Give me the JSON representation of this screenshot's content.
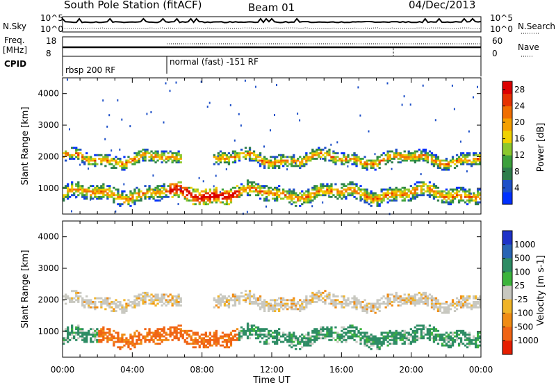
{
  "header": {
    "station": "South Pole Station (fitACF)",
    "beam": "Beam 01",
    "date": "04/Dec/2013"
  },
  "side_labels": {
    "nsky": "N.Sky",
    "freq": "Freq.",
    "freq_unit": "[MHz]",
    "cpid": "CPID",
    "nsearch": "N.Search",
    "nave": "Nave"
  },
  "noise_ticks": [
    "10^5",
    "10^0"
  ],
  "freq_left_ticks": [
    "18",
    "8"
  ],
  "nave_right_ticks": [
    "60",
    "0"
  ],
  "cpid_segments": [
    "rbsp 200 RF",
    "normal (fast) -151 RF"
  ],
  "colors": {
    "power_scale": [
      "#0030ff",
      "#1e50c8",
      "#2d7d4b",
      "#3ca03c",
      "#8cc82d",
      "#f0d200",
      "#f5a000",
      "#f06e00",
      "#e63200",
      "#dc0000"
    ],
    "velocity_scale": [
      "#1e32c8",
      "#2864b4",
      "#2d8c64",
      "#3cb43c",
      "#c8c8c0",
      "#f0b428",
      "#f08c14",
      "#f06414",
      "#e61e00"
    ]
  },
  "chart_data": [
    {
      "type": "heatmap",
      "title": "",
      "xlabel": "",
      "ylabel": "Slant Range [km]",
      "x_ticks": [
        "00:00",
        "04:00",
        "08:00",
        "12:00",
        "16:00",
        "20:00",
        "00:00"
      ],
      "xlim_hours": [
        0,
        24
      ],
      "y_ticks": [
        1000,
        2000,
        3000,
        4000
      ],
      "ylim_km": [
        180,
        4500
      ],
      "colorbar": {
        "label": "Power [dB]",
        "ticks": [
          4,
          8,
          12,
          16,
          20,
          24,
          28
        ],
        "range": [
          0,
          30
        ]
      },
      "echo_bands": [
        {
          "name": "near",
          "center_km": 800,
          "width_km": 220
        },
        {
          "name": "far",
          "center_km": 1900,
          "width_km": 180
        }
      ]
    },
    {
      "type": "heatmap",
      "title": "",
      "xlabel": "Time UT",
      "ylabel": "Slant Range [km]",
      "x_ticks": [
        "00:00",
        "04:00",
        "08:00",
        "12:00",
        "16:00",
        "20:00",
        "00:00"
      ],
      "xlim_hours": [
        0,
        24
      ],
      "y_ticks": [
        1000,
        2000,
        3000,
        4000
      ],
      "ylim_km": [
        180,
        4500
      ],
      "colorbar": {
        "label": "Velocity [m s-1]",
        "ticks": [
          1000,
          500,
          100,
          25,
          -25,
          -100,
          -500,
          -1000
        ]
      }
    }
  ]
}
